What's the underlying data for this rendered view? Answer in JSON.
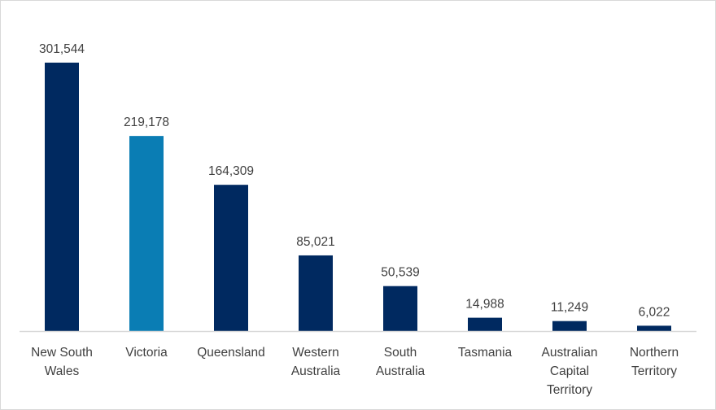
{
  "chart_data": {
    "type": "bar",
    "title": "",
    "xlabel": "",
    "ylabel": "",
    "categories": [
      [
        "New South",
        "Wales"
      ],
      [
        "Victoria"
      ],
      [
        "Queensland"
      ],
      [
        "Western",
        "Australia"
      ],
      [
        "South",
        "Australia"
      ],
      [
        "Tasmania"
      ],
      [
        "Australian",
        "Capital",
        "Territory"
      ],
      [
        "Northern",
        "Territory"
      ]
    ],
    "values": [
      301544,
      219178,
      164309,
      85021,
      50539,
      14988,
      11249,
      6022
    ],
    "value_labels": [
      "301,544",
      "219,178",
      "164,309",
      "85,021",
      "50,539",
      "14,988",
      "11,249",
      "6,022"
    ],
    "highlight_index": 1,
    "ylim": [
      0,
      301544
    ],
    "grid": false,
    "colors": {
      "bar": "#002960",
      "highlight": "#0a7db4",
      "axis": "#d9d9d9",
      "text": "#404040"
    }
  }
}
